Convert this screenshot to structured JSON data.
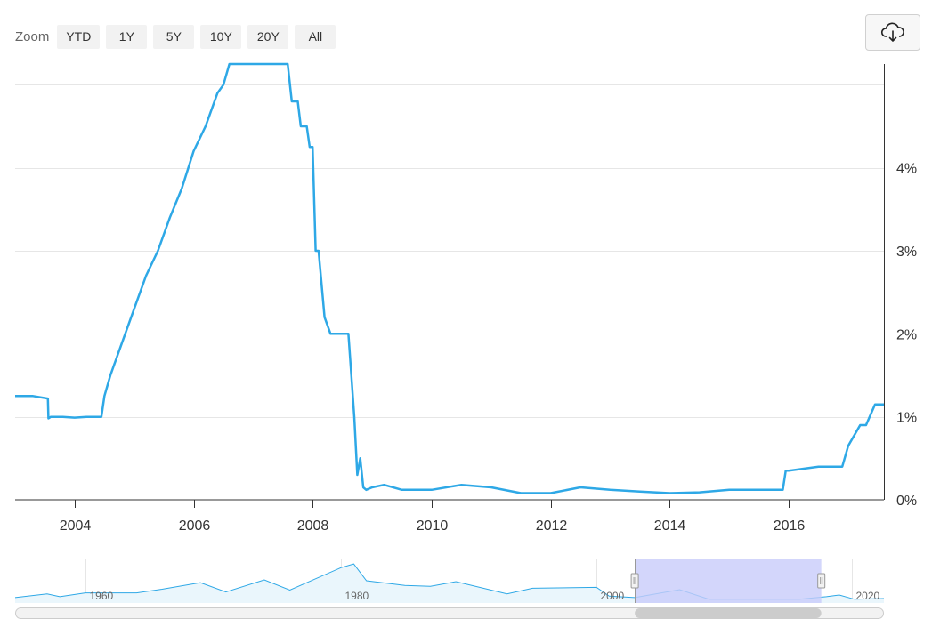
{
  "toolbar": {
    "zoom_label": "Zoom",
    "buttons": [
      "YTD",
      "1Y",
      "5Y",
      "10Y",
      "20Y",
      "All"
    ],
    "export_icon": "cloud-download-icon"
  },
  "colors": {
    "line": "#2ea8e6",
    "grid": "#e6e6e6",
    "axis": "#333333",
    "navigator_mask": "#c8ccfa",
    "navigator_fill": "#eaf6fc"
  },
  "chart_data": {
    "type": "line",
    "title": "",
    "xlabel": "",
    "ylabel": "",
    "x_ticks": [
      "2004",
      "2006",
      "2008",
      "2010",
      "2012",
      "2014",
      "2016"
    ],
    "y_ticks": [
      "0%",
      "1%",
      "2%",
      "3%",
      "4%"
    ],
    "xlim": [
      2003.0,
      2017.6
    ],
    "ylim": [
      0,
      5.25
    ],
    "grid": true,
    "y_axis_side": "right",
    "series": [
      {
        "name": "",
        "x": [
          2003.0,
          2003.3,
          2003.55,
          2003.56,
          2003.6,
          2003.8,
          2004.0,
          2004.2,
          2004.45,
          2004.5,
          2004.6,
          2004.8,
          2005.0,
          2005.2,
          2005.4,
          2005.6,
          2005.8,
          2006.0,
          2006.2,
          2006.4,
          2006.5,
          2006.6,
          2006.8,
          2007.0,
          2007.3,
          2007.58,
          2007.65,
          2007.75,
          2007.8,
          2007.9,
          2007.95,
          2008.0,
          2008.05,
          2008.1,
          2008.2,
          2008.3,
          2008.4,
          2008.5,
          2008.6,
          2008.65,
          2008.7,
          2008.75,
          2008.8,
          2008.85,
          2008.9,
          2009.0,
          2009.2,
          2009.5,
          2010.0,
          2010.5,
          2011.0,
          2011.5,
          2012.0,
          2012.5,
          2013.0,
          2013.5,
          2014.0,
          2014.5,
          2015.0,
          2015.9,
          2015.95,
          2016.0,
          2016.5,
          2016.9,
          2017.0,
          2017.2,
          2017.3,
          2017.45,
          2017.5,
          2017.6
        ],
        "y": [
          1.25,
          1.25,
          1.22,
          0.98,
          1.0,
          1.0,
          0.99,
          1.0,
          1.0,
          1.25,
          1.5,
          1.9,
          2.3,
          2.7,
          3.0,
          3.4,
          3.75,
          4.2,
          4.5,
          4.9,
          5.0,
          5.25,
          5.25,
          5.25,
          5.25,
          5.25,
          4.8,
          4.8,
          4.5,
          4.5,
          4.25,
          4.25,
          3.0,
          3.0,
          2.2,
          2.0,
          2.0,
          2.0,
          2.0,
          1.5,
          1.0,
          0.3,
          0.5,
          0.15,
          0.12,
          0.15,
          0.18,
          0.12,
          0.12,
          0.18,
          0.15,
          0.08,
          0.08,
          0.15,
          0.12,
          0.1,
          0.08,
          0.09,
          0.12,
          0.12,
          0.35,
          0.35,
          0.4,
          0.4,
          0.65,
          0.9,
          0.9,
          1.15,
          1.15,
          1.15
        ]
      }
    ],
    "navigator": {
      "x_ticks": [
        "1960",
        "1980",
        "2000",
        "2020"
      ],
      "xlim": [
        1954.5,
        2022.5
      ],
      "x": [
        1954.5,
        1957,
        1958,
        1960,
        1964,
        1966,
        1969,
        1971,
        1974,
        1976,
        1980,
        1981,
        1982,
        1985,
        1987,
        1989,
        1993,
        1995,
        2000,
        2001,
        2003,
        2006.5,
        2008.8,
        2015.9,
        2018,
        2019,
        2020.2,
        2022.5
      ],
      "y": [
        1.0,
        3.0,
        1.5,
        3.5,
        3.5,
        5.5,
        9.0,
        4.0,
        10.5,
        5.0,
        17.0,
        19.0,
        10.0,
        7.5,
        7.0,
        9.5,
        3.0,
        6.0,
        6.5,
        1.75,
        1.0,
        5.25,
        0.15,
        0.12,
        1.5,
        2.4,
        0.1,
        0.5
      ],
      "ylim": [
        0,
        20
      ],
      "selected_range": [
        2003.0,
        2017.6
      ]
    }
  }
}
